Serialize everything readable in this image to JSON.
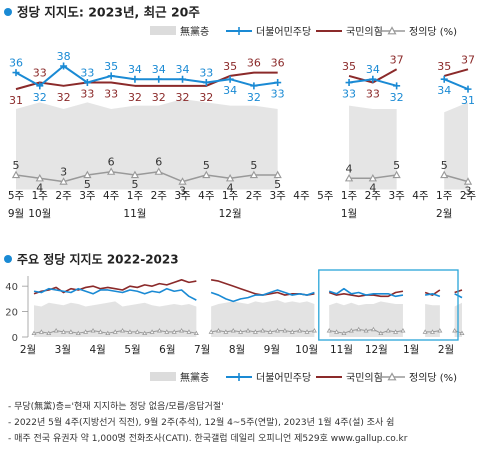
{
  "chart_data": [
    {
      "type": "line",
      "title": "정당 지지도: 2023년, 최근 20주",
      "legend": {
        "placement": "top-right",
        "items": [
          {
            "name": "無黨층",
            "color": "#dcdcdc",
            "symbol": "area"
          },
          {
            "name": "더불어민주당",
            "color": "#1a8ad4",
            "symbol": "plus"
          },
          {
            "name": "국민의힘",
            "color": "#8b2a2a",
            "symbol": "line"
          },
          {
            "name": "정의당 (%)",
            "color": "#999999",
            "symbol": "triangle"
          }
        ]
      },
      "ylim": [
        0,
        45
      ],
      "grid": false,
      "x_ticks": [
        {
          "week": "5주",
          "month": "9월"
        },
        {
          "week": "1주",
          "month": "10월"
        },
        {
          "week": "2주",
          "month": ""
        },
        {
          "week": "3주",
          "month": ""
        },
        {
          "week": "4주",
          "month": ""
        },
        {
          "week": "1주",
          "month": "11월"
        },
        {
          "week": "2주",
          "month": ""
        },
        {
          "week": "3주",
          "month": ""
        },
        {
          "week": "4주",
          "month": ""
        },
        {
          "week": "1주",
          "month": "12월"
        },
        {
          "week": "2주",
          "month": ""
        },
        {
          "week": "3주",
          "month": ""
        },
        {
          "week": "4주",
          "month": ""
        },
        {
          "week": "5주",
          "month": ""
        },
        {
          "week": "1주",
          "month": "1월"
        },
        {
          "week": "2주",
          "month": ""
        },
        {
          "week": "3주",
          "month": ""
        },
        {
          "week": "4주",
          "month": ""
        },
        {
          "week": "1주",
          "month": "2월"
        },
        {
          "week": "2주",
          "month": ""
        }
      ],
      "segments": [
        [
          0,
          11
        ],
        [
          14,
          16
        ],
        [
          18,
          19
        ]
      ],
      "series": [
        {
          "name": "더불어민주당",
          "values": [
            36,
            32,
            38,
            33,
            35,
            34,
            34,
            34,
            33,
            34,
            32,
            33,
            null,
            null,
            33,
            34,
            32,
            null,
            34,
            31
          ]
        },
        {
          "name": "국민의힘",
          "values": [
            31,
            33,
            32,
            33,
            33,
            32,
            32,
            32,
            32,
            35,
            36,
            36,
            null,
            null,
            35,
            33,
            37,
            null,
            35,
            37
          ]
        },
        {
          "name": "정의당",
          "values": [
            5,
            4,
            3,
            5,
            6,
            5,
            6,
            3,
            5,
            4,
            5,
            5,
            null,
            null,
            4,
            4,
            5,
            null,
            5,
            3
          ]
        },
        {
          "name": "無黨층",
          "values": [
            25,
            27,
            25,
            27,
            25,
            26,
            26,
            28,
            27,
            26,
            26,
            25,
            null,
            null,
            26,
            25,
            25,
            null,
            24,
            27
          ]
        }
      ]
    },
    {
      "type": "line",
      "title": "주요 정당 지지도 2022-2023",
      "yticks": [
        0,
        20,
        40
      ],
      "ylim": [
        0,
        48
      ],
      "month_labels": [
        "2월",
        "3월",
        "4월",
        "5월",
        "6월",
        "7월",
        "8월",
        "9월",
        "10월",
        "11월",
        "12월",
        "1월",
        "2월"
      ],
      "legend": {
        "placement": "bottom-right",
        "items": [
          {
            "name": "無黨층",
            "color": "#dcdcdc",
            "symbol": "area"
          },
          {
            "name": "더불어민주당",
            "color": "#1a8ad4",
            "symbol": "plus"
          },
          {
            "name": "국민의힘",
            "color": "#8b2a2a",
            "symbol": "line"
          },
          {
            "name": "정의당 (%)",
            "color": "#999999",
            "symbol": "triangle"
          }
        ]
      },
      "series": [
        {
          "name": "더불어민주당",
          "values": [
            36,
            35,
            38,
            37,
            36,
            35,
            38,
            36,
            34,
            37,
            37,
            36,
            35,
            37,
            36,
            34,
            36,
            35,
            38,
            36,
            37,
            32,
            29,
            null,
            35,
            33,
            30,
            28,
            30,
            31,
            33,
            33,
            35,
            37,
            35,
            33,
            34,
            33,
            35,
            null,
            36,
            34,
            38,
            34,
            35,
            33,
            34,
            34,
            34,
            32,
            33,
            null,
            null,
            33,
            34,
            32,
            null,
            34,
            31
          ]
        },
        {
          "name": "국민의힘",
          "values": [
            34,
            36,
            37,
            39,
            35,
            38,
            37,
            39,
            40,
            38,
            39,
            38,
            37,
            40,
            39,
            41,
            40,
            42,
            41,
            43,
            45,
            43,
            44,
            null,
            45,
            44,
            42,
            40,
            38,
            36,
            34,
            33,
            34,
            35,
            33,
            34,
            34,
            33,
            34,
            null,
            35,
            33,
            34,
            33,
            32,
            33,
            33,
            32,
            32,
            35,
            36,
            null,
            null,
            35,
            33,
            37,
            null,
            35,
            37
          ]
        },
        {
          "name": "정의당",
          "values": [
            3,
            4,
            3,
            5,
            4,
            4,
            3,
            4,
            5,
            4,
            3,
            4,
            5,
            4,
            4,
            3,
            4,
            5,
            4,
            4,
            5,
            4,
            3,
            null,
            4,
            5,
            4,
            5,
            4,
            5,
            4,
            5,
            4,
            5,
            5,
            4,
            5,
            4,
            5,
            null,
            5,
            4,
            3,
            5,
            6,
            5,
            6,
            3,
            5,
            4,
            5,
            null,
            null,
            4,
            4,
            5,
            null,
            5,
            3
          ]
        },
        {
          "name": "無黨층",
          "values": [
            25,
            24,
            27,
            26,
            25,
            27,
            26,
            24,
            25,
            26,
            27,
            28,
            24,
            25,
            26,
            27,
            25,
            24,
            25,
            26,
            25,
            26,
            24,
            null,
            24,
            26,
            27,
            28,
            27,
            26,
            28,
            27,
            28,
            29,
            27,
            28,
            27,
            28,
            26,
            null,
            25,
            27,
            25,
            27,
            25,
            26,
            26,
            28,
            27,
            26,
            26,
            null,
            null,
            26,
            25,
            25,
            null,
            24,
            27
          ]
        }
      ],
      "highlight_box": {
        "color": "#2aa5d9"
      }
    }
  ],
  "footnotes": [
    "- 무당(無黨)층='현재 지지하는 정당 없음/모름/응답거절'",
    "- 2022년 5월 4주(지방선거 직전), 9월 2주(추석), 12월 4~5주(연말), 2023년 1월 4주(설) 조사 쉼",
    "- 매주 전국 유권자 약 1,000명 전화조사(CATI). 한국갤럽 데일리 오피니언 제529호 www.gallup.co.kr"
  ]
}
